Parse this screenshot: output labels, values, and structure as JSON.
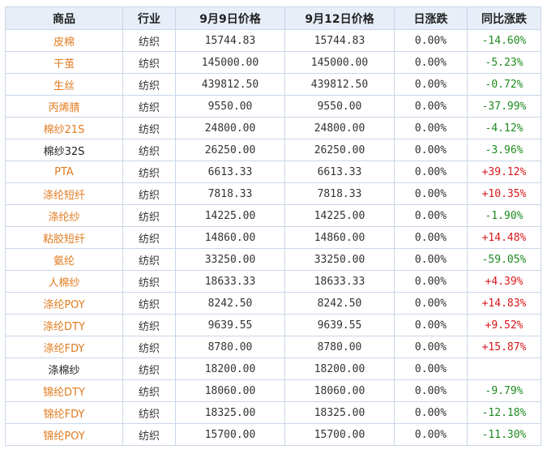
{
  "colors": {
    "header_bg": "#e7eef8",
    "border": "#c9d6e8",
    "link": "#e07b1f",
    "up": "#d9161a",
    "down": "#1e8a1e"
  },
  "headers": [
    "商品",
    "行业",
    "9月9日价格",
    "9月12日价格",
    "日涨跌",
    "同比涨跌"
  ],
  "rows": [
    {
      "name": "皮棉",
      "name_style": "orange",
      "industry": "纺织",
      "price1": "15744.83",
      "price2": "15744.83",
      "daily": "0.00%",
      "yoy": "-14.60%"
    },
    {
      "name": "干茧",
      "name_style": "orange",
      "industry": "纺织",
      "price1": "145000.00",
      "price2": "145000.00",
      "daily": "0.00%",
      "yoy": "-5.23%"
    },
    {
      "name": "生丝",
      "name_style": "orange",
      "industry": "纺织",
      "price1": "439812.50",
      "price2": "439812.50",
      "daily": "0.00%",
      "yoy": "-0.72%"
    },
    {
      "name": "丙烯腈",
      "name_style": "orange",
      "industry": "纺织",
      "price1": "9550.00",
      "price2": "9550.00",
      "daily": "0.00%",
      "yoy": "-37.99%"
    },
    {
      "name": "棉纱21S",
      "name_style": "orange",
      "industry": "纺织",
      "price1": "24800.00",
      "price2": "24800.00",
      "daily": "0.00%",
      "yoy": "-4.12%"
    },
    {
      "name": "棉纱32S",
      "name_style": "plain",
      "industry": "纺织",
      "price1": "26250.00",
      "price2": "26250.00",
      "daily": "0.00%",
      "yoy": "-3.96%"
    },
    {
      "name": "PTA",
      "name_style": "orange",
      "industry": "纺织",
      "price1": "6613.33",
      "price2": "6613.33",
      "daily": "0.00%",
      "yoy": "+39.12%"
    },
    {
      "name": "涤纶短纤",
      "name_style": "orange",
      "industry": "纺织",
      "price1": "7818.33",
      "price2": "7818.33",
      "daily": "0.00%",
      "yoy": "+10.35%"
    },
    {
      "name": "涤纶纱",
      "name_style": "orange",
      "industry": "纺织",
      "price1": "14225.00",
      "price2": "14225.00",
      "daily": "0.00%",
      "yoy": "-1.90%"
    },
    {
      "name": "粘胶短纤",
      "name_style": "orange",
      "industry": "纺织",
      "price1": "14860.00",
      "price2": "14860.00",
      "daily": "0.00%",
      "yoy": "+14.48%"
    },
    {
      "name": "氨纶",
      "name_style": "orange",
      "industry": "纺织",
      "price1": "33250.00",
      "price2": "33250.00",
      "daily": "0.00%",
      "yoy": "-59.05%"
    },
    {
      "name": "人棉纱",
      "name_style": "orange",
      "industry": "纺织",
      "price1": "18633.33",
      "price2": "18633.33",
      "daily": "0.00%",
      "yoy": "+4.39%"
    },
    {
      "name": "涤纶POY",
      "name_style": "orange",
      "industry": "纺织",
      "price1": "8242.50",
      "price2": "8242.50",
      "daily": "0.00%",
      "yoy": "+14.83%"
    },
    {
      "name": "涤纶DTY",
      "name_style": "orange",
      "industry": "纺织",
      "price1": "9639.55",
      "price2": "9639.55",
      "daily": "0.00%",
      "yoy": "+9.52%"
    },
    {
      "name": "涤纶FDY",
      "name_style": "orange",
      "industry": "纺织",
      "price1": "8780.00",
      "price2": "8780.00",
      "daily": "0.00%",
      "yoy": "+15.87%"
    },
    {
      "name": "涤棉纱",
      "name_style": "plain",
      "industry": "纺织",
      "price1": "18200.00",
      "price2": "18200.00",
      "daily": "0.00%",
      "yoy": ""
    },
    {
      "name": "锦纶DTY",
      "name_style": "orange",
      "industry": "纺织",
      "price1": "18060.00",
      "price2": "18060.00",
      "daily": "0.00%",
      "yoy": "-9.79%"
    },
    {
      "name": "锦纶FDY",
      "name_style": "orange",
      "industry": "纺织",
      "price1": "18325.00",
      "price2": "18325.00",
      "daily": "0.00%",
      "yoy": "-12.18%"
    },
    {
      "name": "锦纶POY",
      "name_style": "orange",
      "industry": "纺织",
      "price1": "15700.00",
      "price2": "15700.00",
      "daily": "0.00%",
      "yoy": "-11.30%"
    }
  ]
}
